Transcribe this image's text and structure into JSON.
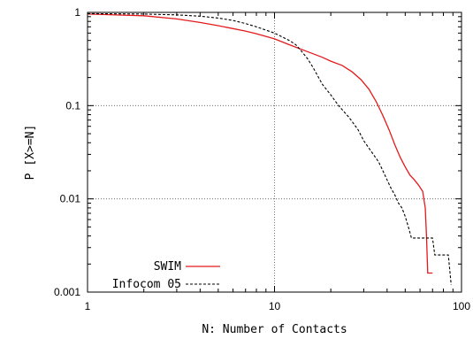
{
  "chart_data": {
    "type": "line",
    "xlabel": "N: Number of Contacts",
    "ylabel": "P [X>=N]",
    "xscale": "log",
    "yscale": "log",
    "xlim": [
      1,
      100
    ],
    "ylim": [
      0.001,
      1
    ],
    "grid": true,
    "legend_position": "bottom-left",
    "x_ticks": [
      {
        "value": 1,
        "label": "1"
      },
      {
        "value": 10,
        "label": "10"
      },
      {
        "value": 100,
        "label": "100"
      }
    ],
    "y_ticks": [
      {
        "value": 0.001,
        "label": "0.001"
      },
      {
        "value": 0.01,
        "label": "0.01"
      },
      {
        "value": 0.1,
        "label": "0.1"
      },
      {
        "value": 1,
        "label": "1"
      }
    ],
    "series": [
      {
        "name": "SWIM",
        "color": "#e41a1c",
        "dash": "solid",
        "points": [
          [
            1,
            0.96
          ],
          [
            2,
            0.92
          ],
          [
            3,
            0.85
          ],
          [
            4,
            0.78
          ],
          [
            5,
            0.72
          ],
          [
            6,
            0.67
          ],
          [
            7,
            0.63
          ],
          [
            8,
            0.59
          ],
          [
            10,
            0.52
          ],
          [
            12,
            0.45
          ],
          [
            15,
            0.38
          ],
          [
            18,
            0.33
          ],
          [
            20,
            0.3
          ],
          [
            23,
            0.27
          ],
          [
            26,
            0.23
          ],
          [
            29,
            0.19
          ],
          [
            32,
            0.15
          ],
          [
            35,
            0.11
          ],
          [
            38,
            0.078
          ],
          [
            41,
            0.055
          ],
          [
            44,
            0.038
          ],
          [
            47,
            0.028
          ],
          [
            50,
            0.022
          ],
          [
            53,
            0.018
          ],
          [
            56,
            0.016
          ],
          [
            59,
            0.014
          ],
          [
            62,
            0.012
          ],
          [
            64,
            0.008
          ],
          [
            65,
            0.004
          ],
          [
            66,
            0.0016
          ],
          [
            70,
            0.0016
          ]
        ]
      },
      {
        "name": "Infocom 05",
        "color": "#000000",
        "dash": "dashed",
        "points": [
          [
            1,
            0.97
          ],
          [
            2,
            0.96
          ],
          [
            3,
            0.94
          ],
          [
            4,
            0.91
          ],
          [
            5,
            0.87
          ],
          [
            6,
            0.82
          ],
          [
            7,
            0.76
          ],
          [
            8,
            0.7
          ],
          [
            10,
            0.6
          ],
          [
            12,
            0.5
          ],
          [
            13,
            0.45
          ],
          [
            14,
            0.38
          ],
          [
            15,
            0.32
          ],
          [
            16,
            0.26
          ],
          [
            17,
            0.21
          ],
          [
            18,
            0.17
          ],
          [
            20,
            0.13
          ],
          [
            22,
            0.1
          ],
          [
            25,
            0.075
          ],
          [
            28,
            0.055
          ],
          [
            30,
            0.042
          ],
          [
            33,
            0.032
          ],
          [
            36,
            0.025
          ],
          [
            38,
            0.02
          ],
          [
            40,
            0.016
          ],
          [
            42,
            0.013
          ],
          [
            44,
            0.011
          ],
          [
            46,
            0.009
          ],
          [
            48,
            0.008
          ],
          [
            50,
            0.0065
          ],
          [
            52,
            0.005
          ],
          [
            54,
            0.0038
          ],
          [
            60,
            0.0038
          ],
          [
            70,
            0.0038
          ],
          [
            72,
            0.0025
          ],
          [
            85,
            0.0025
          ],
          [
            88,
            0.0012
          ]
        ]
      }
    ]
  }
}
